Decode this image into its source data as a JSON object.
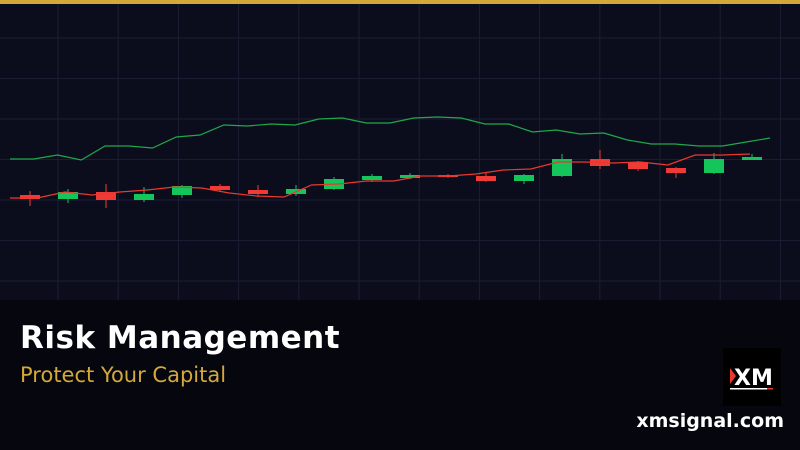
{
  "colors": {
    "accent": "#d4a93a",
    "bullish": "#13c55a",
    "bearish": "#f03a35",
    "upper_line": "#1fa84a",
    "ma_line": "#e8392f",
    "grid": "#1b1e33"
  },
  "banner": {
    "title": "Risk Management",
    "subtitle": "Protect Your Capital",
    "site": "xmsignal.com",
    "logo_text": "XM"
  },
  "chart_data": {
    "type": "candlestick",
    "grid": true,
    "candles": [
      {
        "o": 105,
        "c": 101,
        "h": 109,
        "l": 94
      },
      {
        "o": 101,
        "c": 108,
        "h": 111,
        "l": 97
      },
      {
        "o": 108,
        "c": 100,
        "h": 116,
        "l": 92
      },
      {
        "o": 100,
        "c": 106,
        "h": 113,
        "l": 98
      },
      {
        "o": 105,
        "c": 114,
        "h": 115,
        "l": 102
      },
      {
        "o": 114,
        "c": 110,
        "h": 116,
        "l": 108
      },
      {
        "o": 110,
        "c": 106,
        "h": 115,
        "l": 103
      },
      {
        "o": 106,
        "c": 111,
        "h": 115,
        "l": 104
      },
      {
        "o": 111,
        "c": 121,
        "h": 123,
        "l": 110
      },
      {
        "o": 120,
        "c": 124,
        "h": 126,
        "l": 118
      },
      {
        "o": 122,
        "c": 125,
        "h": 127,
        "l": 121
      },
      {
        "o": 125,
        "c": 123,
        "h": 126,
        "l": 122
      },
      {
        "o": 124,
        "c": 119,
        "h": 127,
        "l": 118
      },
      {
        "o": 119,
        "c": 125,
        "h": 126,
        "l": 116
      },
      {
        "o": 124,
        "c": 141,
        "h": 146,
        "l": 123
      },
      {
        "o": 141,
        "c": 134,
        "h": 150,
        "l": 131
      },
      {
        "o": 138,
        "c": 131,
        "h": 139,
        "l": 129
      },
      {
        "o": 132,
        "c": 127,
        "h": 133,
        "l": 122
      },
      {
        "o": 127,
        "c": 141,
        "h": 147,
        "l": 126
      },
      {
        "o": 140,
        "c": 143,
        "h": 146,
        "l": 140
      }
    ],
    "ma_line": [
      102,
      102,
      108,
      105,
      108,
      110,
      113,
      112,
      107,
      104,
      103,
      115,
      116,
      119,
      119,
      124,
      124,
      126,
      130,
      131,
      138,
      138,
      137,
      138,
      135,
      145,
      145,
      146
    ],
    "upper_line": [
      141,
      141,
      145,
      140,
      154,
      154,
      152,
      163,
      165,
      175,
      174,
      176,
      175,
      181,
      182,
      177,
      177,
      182,
      183,
      182,
      176,
      176,
      168,
      170,
      166,
      167,
      160,
      156,
      156,
      154,
      154,
      158,
      162
    ]
  }
}
